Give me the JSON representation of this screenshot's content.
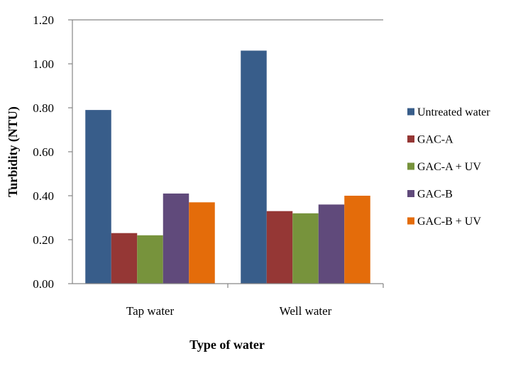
{
  "chart_data": {
    "type": "bar",
    "categories": [
      "Tap water",
      "Well water"
    ],
    "series": [
      {
        "name": "Untreated water",
        "color": "#385d8a",
        "values": [
          0.79,
          1.06
        ]
      },
      {
        "name": "GAC-A",
        "color": "#953735",
        "values": [
          0.23,
          0.33
        ]
      },
      {
        "name": "GAC-A + UV",
        "color": "#77933c",
        "values": [
          0.22,
          0.32
        ]
      },
      {
        "name": "GAC-B",
        "color": "#604a7b",
        "values": [
          0.41,
          0.36
        ]
      },
      {
        "name": "GAC-B + UV",
        "color": "#e46c0a",
        "values": [
          0.37,
          0.4
        ]
      }
    ],
    "xlabel": "Type of water",
    "ylabel": "Turbidity (NTU)",
    "ylim": [
      0,
      1.2
    ],
    "yticks": [
      "0.00",
      "0.20",
      "0.40",
      "0.60",
      "0.80",
      "1.00",
      "1.20"
    ],
    "grid": false,
    "legend": "right"
  }
}
